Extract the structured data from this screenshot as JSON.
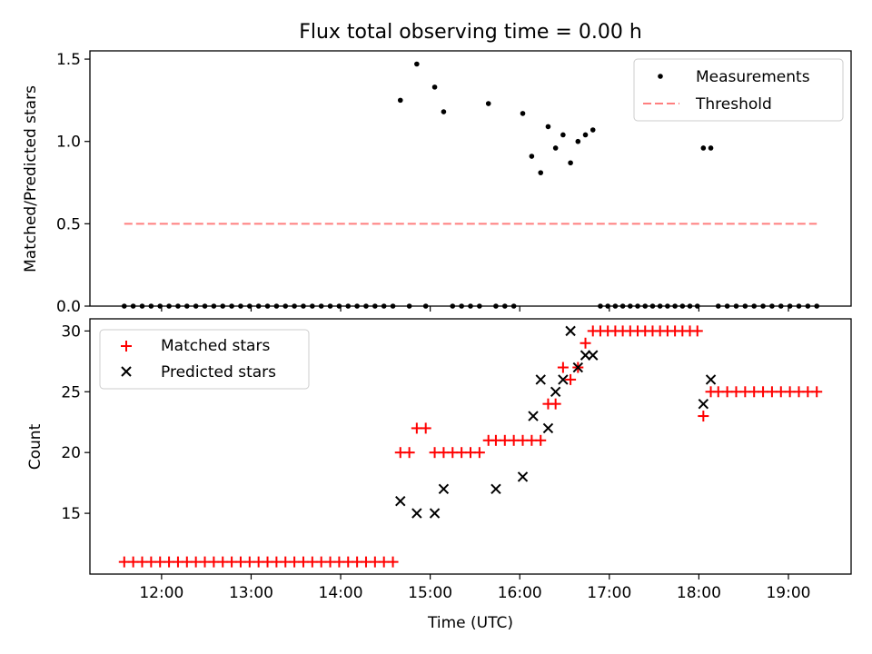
{
  "chart_data": [
    {
      "type": "scatter",
      "title": "Flux total observing time = 0.00 h",
      "xlabel": "",
      "ylabel": "Matched/Predicted stars",
      "xlim": [
        "11:12",
        "19:42"
      ],
      "ylim": [
        0,
        1.55
      ],
      "xticks": [
        "12:00",
        "13:00",
        "14:00",
        "15:00",
        "16:00",
        "17:00",
        "18:00",
        "19:00"
      ],
      "yticks": [
        "0.0",
        "0.5",
        "1.0",
        "1.5"
      ],
      "legend": {
        "position": "top-right",
        "entries": [
          "Measurements",
          "Threshold"
        ]
      },
      "series": [
        {
          "name": "Measurements",
          "color": "#000000",
          "marker": "dot",
          "x": [
            "11:35",
            "11:41",
            "11:47",
            "11:53",
            "11:59",
            "12:05",
            "12:11",
            "12:17",
            "12:23",
            "12:29",
            "12:35",
            "12:41",
            "12:47",
            "12:53",
            "12:59",
            "13:05",
            "13:11",
            "13:17",
            "13:23",
            "13:29",
            "13:35",
            "13:41",
            "13:47",
            "13:53",
            "13:59",
            "14:05",
            "14:11",
            "14:17",
            "14:23",
            "14:29",
            "14:35",
            "14:40",
            "14:46",
            "14:51",
            "14:57",
            "15:03",
            "15:09",
            "15:15",
            "15:21",
            "15:27",
            "15:33",
            "15:39",
            "15:44",
            "15:50",
            "15:56",
            "16:02",
            "16:08",
            "16:14",
            "16:19",
            "16:24",
            "16:29",
            "16:34",
            "16:39",
            "16:44",
            "16:49",
            "16:54",
            "16:59",
            "17:04",
            "17:09",
            "17:14",
            "17:19",
            "17:24",
            "17:29",
            "17:34",
            "17:39",
            "17:44",
            "17:49",
            "17:54",
            "17:59",
            "18:03",
            "18:08",
            "18:13",
            "18:19",
            "18:25",
            "18:31",
            "18:37",
            "18:43",
            "18:49",
            "18:55",
            "19:01",
            "19:07",
            "19:13",
            "19:19"
          ],
          "y": [
            0,
            0,
            0,
            0,
            0,
            0,
            0,
            0,
            0,
            0,
            0,
            0,
            0,
            0,
            0,
            0,
            0,
            0,
            0,
            0,
            0,
            0,
            0,
            0,
            0,
            0,
            0,
            0,
            0,
            0,
            0,
            1.25,
            0,
            1.47,
            0,
            1.33,
            1.18,
            0,
            0,
            0,
            0,
            1.23,
            0,
            0,
            0,
            1.17,
            0.91,
            0.81,
            1.09,
            0.96,
            1.04,
            0.87,
            1.0,
            1.04,
            1.07,
            0,
            0,
            0,
            0,
            0,
            0,
            0,
            0,
            0,
            0,
            0,
            0,
            0,
            0,
            0.96,
            0.96,
            0,
            0,
            0,
            0,
            0,
            0,
            0,
            0,
            0,
            0,
            0,
            0
          ]
        },
        {
          "name": "Threshold",
          "color": "#ff7f7f",
          "style": "dashed",
          "x": [
            "11:35",
            "19:19"
          ],
          "y": [
            0.5,
            0.5
          ]
        }
      ]
    },
    {
      "type": "scatter",
      "title": "",
      "xlabel": "Time (UTC)",
      "ylabel": "Count",
      "xlim": [
        "11:12",
        "19:42"
      ],
      "ylim": [
        10,
        31
      ],
      "xticks": [
        "12:00",
        "13:00",
        "14:00",
        "15:00",
        "16:00",
        "17:00",
        "18:00",
        "19:00"
      ],
      "yticks": [
        "15",
        "20",
        "25",
        "30"
      ],
      "legend": {
        "position": "top-left",
        "entries": [
          "Matched stars",
          "Predicted stars"
        ]
      },
      "series": [
        {
          "name": "Matched stars",
          "color": "#ff0000",
          "marker": "plus",
          "x": [
            "11:35",
            "11:41",
            "11:47",
            "11:53",
            "11:59",
            "12:05",
            "12:11",
            "12:17",
            "12:23",
            "12:29",
            "12:35",
            "12:41",
            "12:47",
            "12:53",
            "12:59",
            "13:05",
            "13:11",
            "13:17",
            "13:23",
            "13:29",
            "13:35",
            "13:41",
            "13:47",
            "13:53",
            "13:59",
            "14:05",
            "14:11",
            "14:17",
            "14:23",
            "14:29",
            "14:35",
            "14:40",
            "14:46",
            "14:51",
            "14:57",
            "15:03",
            "15:09",
            "15:15",
            "15:21",
            "15:27",
            "15:33",
            "15:39",
            "15:44",
            "15:50",
            "15:56",
            "16:02",
            "16:08",
            "16:14",
            "16:19",
            "16:24",
            "16:29",
            "16:34",
            "16:39",
            "16:44",
            "16:49",
            "16:54",
            "16:59",
            "17:04",
            "17:09",
            "17:14",
            "17:19",
            "17:24",
            "17:29",
            "17:34",
            "17:39",
            "17:44",
            "17:49",
            "17:54",
            "17:59",
            "18:03",
            "18:08",
            "18:13",
            "18:19",
            "18:25",
            "18:31",
            "18:37",
            "18:43",
            "18:49",
            "18:55",
            "19:01",
            "19:07",
            "19:13",
            "19:19"
          ],
          "y": [
            11,
            11,
            11,
            11,
            11,
            11,
            11,
            11,
            11,
            11,
            11,
            11,
            11,
            11,
            11,
            11,
            11,
            11,
            11,
            11,
            11,
            11,
            11,
            11,
            11,
            11,
            11,
            11,
            11,
            11,
            11,
            20,
            20,
            22,
            22,
            20,
            20,
            20,
            20,
            20,
            20,
            21,
            21,
            21,
            21,
            21,
            21,
            21,
            24,
            24,
            27,
            26,
            27,
            29,
            30,
            30,
            30,
            30,
            30,
            30,
            30,
            30,
            30,
            30,
            30,
            30,
            30,
            30,
            30,
            23,
            25,
            25,
            25,
            25,
            25,
            25,
            25,
            25,
            25,
            25,
            25,
            25,
            25
          ]
        },
        {
          "name": "Predicted stars",
          "color": "#000000",
          "marker": "x",
          "x": [
            "14:40",
            "14:51",
            "15:03",
            "15:09",
            "15:44",
            "16:02",
            "16:09",
            "16:14",
            "16:19",
            "16:24",
            "16:29",
            "16:34",
            "16:39",
            "16:44",
            "16:49",
            "18:03",
            "18:08"
          ],
          "y": [
            16,
            15,
            15,
            17,
            17,
            18,
            23,
            26,
            22,
            25,
            26,
            30,
            27,
            28,
            28,
            24,
            26
          ]
        }
      ]
    }
  ]
}
